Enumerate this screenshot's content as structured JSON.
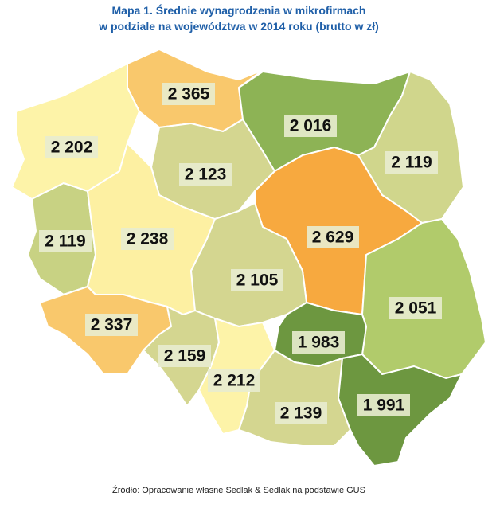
{
  "title_lines": [
    "Mapa 1. Średnie wynagrodzenia w mikrofirmach",
    "w podziale na województwa w 2014 roku (brutto w zł)"
  ],
  "regions": [
    {
      "label": "2 365",
      "color": "#f9c86c"
    },
    {
      "label": "2 202",
      "color": "#fdf3a8"
    },
    {
      "label": "2 016",
      "color": "#8db355"
    },
    {
      "label": "2 119",
      "color": "#d0d68c"
    },
    {
      "label": "2 123",
      "color": "#d4d690"
    },
    {
      "label": "2 629",
      "color": "#f7a93f"
    },
    {
      "label": "2 119",
      "color": "#c8d283"
    },
    {
      "label": "2 238",
      "color": "#fdf0a2"
    },
    {
      "label": "2 105",
      "color": "#d4d690"
    },
    {
      "label": "2 051",
      "color": "#b1cb6b"
    },
    {
      "label": "2 337",
      "color": "#f9c86c"
    },
    {
      "label": "1 983",
      "color": "#6d9740"
    },
    {
      "label": "2 159",
      "color": "#d4d690"
    },
    {
      "label": "2 212",
      "color": "#fdf3a8"
    },
    {
      "label": "2 139",
      "color": "#d4d690"
    },
    {
      "label": "1 991",
      "color": "#6d9740"
    }
  ],
  "source": "Źródło: Opracowanie własne Sedlak & Sedlak na podstawie GUS"
}
